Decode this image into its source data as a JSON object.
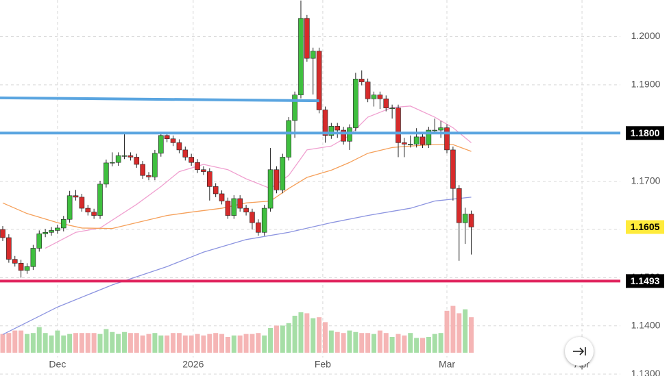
{
  "chart_data": {
    "type": "candlestick",
    "open": [
      1.16,
      1.1583,
      1.1538,
      1.153,
      1.1515,
      1.1523,
      1.1561,
      1.1591,
      1.1594,
      1.1598,
      1.1603,
      1.1621,
      1.167,
      1.1667,
      1.1644,
      1.1636,
      1.1629,
      1.1694,
      1.1738,
      1.1739,
      1.1753,
      1.1753,
      1.175,
      1.1735,
      1.1712,
      1.1709,
      1.1758,
      1.1795,
      1.1788,
      1.178,
      1.1765,
      1.175,
      1.1739,
      1.1724,
      1.172,
      1.1689,
      1.1674,
      1.1659,
      1.1629,
      1.1664,
      1.1644,
      1.1636,
      1.1614,
      1.1594,
      1.1644,
      1.1724,
      1.1682,
      1.175,
      1.1826,
      1.1879,
      1.2038,
      1.1955,
      1.197,
      1.1848,
      1.1795,
      1.1814,
      1.1806,
      1.1783,
      1.1811,
      1.1912,
      1.1906,
      1.1871,
      1.1879,
      1.1871,
      1.1852,
      1.1852,
      1.178,
      1.1777,
      1.1777,
      1.1792,
      1.1776,
      1.1806,
      1.1806,
      1.1811,
      1.1765,
      1.1685,
      1.1614,
      1.1632
    ],
    "high": [
      1.1607,
      1.159,
      1.1545,
      1.1537,
      1.153,
      1.1568,
      1.1598,
      1.1601,
      1.1605,
      1.161,
      1.1628,
      1.168,
      1.1682,
      1.1674,
      1.1651,
      1.1643,
      1.1701,
      1.1745,
      1.176,
      1.176,
      1.18,
      1.176,
      1.1757,
      1.1742,
      1.1719,
      1.1765,
      1.1802,
      1.1802,
      1.1795,
      1.1787,
      1.1772,
      1.1757,
      1.1746,
      1.1731,
      1.1727,
      1.1696,
      1.1681,
      1.1666,
      1.1671,
      1.1671,
      1.1651,
      1.1643,
      1.1621,
      1.1651,
      1.1769,
      1.1731,
      1.1757,
      1.1833,
      1.1886,
      1.2075,
      1.2045,
      1.1977,
      1.1977,
      1.1855,
      1.1821,
      1.1821,
      1.1813,
      1.1818,
      1.1925,
      1.193,
      1.1913,
      1.1886,
      1.1886,
      1.1878,
      1.1859,
      1.1859,
      1.179,
      1.1795,
      1.181,
      1.1799,
      1.1813,
      1.183,
      1.1825,
      1.1818,
      1.1772,
      1.1692,
      1.1645,
      1.1639
    ],
    "low": [
      1.1576,
      1.1531,
      1.1523,
      1.15,
      1.1508,
      1.1516,
      1.1554,
      1.1584,
      1.1587,
      1.1591,
      1.1596,
      1.1614,
      1.166,
      1.1637,
      1.1629,
      1.1622,
      1.1622,
      1.1687,
      1.1731,
      1.1732,
      1.1746,
      1.1743,
      1.1728,
      1.1705,
      1.1702,
      1.1702,
      1.1751,
      1.1781,
      1.1773,
      1.1758,
      1.1743,
      1.1732,
      1.1717,
      1.1713,
      1.166,
      1.1667,
      1.1652,
      1.1622,
      1.1622,
      1.1637,
      1.1629,
      1.16,
      1.1587,
      1.1587,
      1.1637,
      1.1675,
      1.1675,
      1.1743,
      1.179,
      1.1872,
      1.1948,
      1.188,
      1.1841,
      1.178,
      1.1788,
      1.179,
      1.1776,
      1.1765,
      1.1804,
      1.1899,
      1.1864,
      1.1855,
      1.185,
      1.1845,
      1.183,
      1.175,
      1.175,
      1.177,
      1.177,
      1.1769,
      1.1769,
      1.1799,
      1.179,
      1.1758,
      1.166,
      1.1535,
      1.157,
      1.1548
    ],
    "close": [
      1.1583,
      1.1538,
      1.153,
      1.1515,
      1.1523,
      1.1561,
      1.1591,
      1.1594,
      1.1598,
      1.1603,
      1.1621,
      1.167,
      1.1667,
      1.1644,
      1.1636,
      1.1629,
      1.1694,
      1.1738,
      1.1739,
      1.1753,
      1.1753,
      1.175,
      1.1735,
      1.1712,
      1.1709,
      1.1758,
      1.1795,
      1.1788,
      1.178,
      1.1765,
      1.175,
      1.1739,
      1.1724,
      1.172,
      1.1689,
      1.1674,
      1.1659,
      1.1629,
      1.1664,
      1.1644,
      1.1636,
      1.1614,
      1.1594,
      1.1644,
      1.1724,
      1.1682,
      1.175,
      1.1826,
      1.1879,
      1.2038,
      1.1955,
      1.197,
      1.1848,
      1.1795,
      1.1814,
      1.1806,
      1.1783,
      1.1811,
      1.1912,
      1.1906,
      1.1871,
      1.1879,
      1.1871,
      1.1852,
      1.1852,
      1.178,
      1.1777,
      1.1777,
      1.1792,
      1.1776,
      1.1806,
      1.1806,
      1.1811,
      1.1765,
      1.1685,
      1.1614,
      1.1632,
      1.1605
    ],
    "up_color": "#3fbf3f",
    "down_color": "#d62b2b",
    "volume": {
      "values": [
        38,
        40,
        45,
        45,
        38,
        40,
        52,
        40,
        35,
        45,
        35,
        38,
        40,
        40,
        40,
        40,
        38,
        48,
        42,
        38,
        42,
        40,
        40,
        35,
        38,
        40,
        35,
        35,
        40,
        40,
        35,
        35,
        38,
        35,
        38,
        40,
        38,
        32,
        35,
        35,
        38,
        38,
        40,
        35,
        50,
        55,
        55,
        60,
        75,
        82,
        80,
        70,
        72,
        62,
        45,
        42,
        40,
        45,
        42,
        40,
        40,
        38,
        45,
        40,
        32,
        38,
        35,
        40,
        30,
        30,
        32,
        38,
        40,
        85,
        95,
        80,
        88,
        72
      ],
      "vlim": [
        0,
        100
      ],
      "up_color": "#a6dea6",
      "down_color": "#f5b5b5"
    },
    "xlim": [
      -0.45,
      101.5
    ],
    "xticks": [
      {
        "value": 9.0,
        "label": "Dec"
      },
      {
        "value": 31.3,
        "label": "2026"
      },
      {
        "value": 52.6,
        "label": "Feb"
      },
      {
        "value": 73.0,
        "label": "Mar"
      },
      {
        "value": 95.2,
        "label": "Apr"
      }
    ],
    "ylim": [
      1.1296,
      1.2076
    ],
    "yticks": [
      {
        "value": 1.2,
        "label": "1.2000"
      },
      {
        "value": 1.19,
        "label": "1.1900"
      },
      {
        "value": 1.18,
        "label": "1.1800"
      },
      {
        "value": 1.17,
        "label": "1.1700"
      },
      {
        "value": 1.16,
        "label": "1.1600"
      },
      {
        "value": 1.15,
        "label": "1.1500"
      },
      {
        "value": 1.14,
        "label": "1.1400"
      },
      {
        "value": 1.13,
        "label": "1.1300"
      }
    ],
    "grid": true,
    "moving_averages": [
      {
        "color": "#f0a0d0",
        "x": [
          7,
          12,
          16,
          22,
          26,
          29,
          33,
          37,
          40,
          44,
          47,
          50,
          54,
          57,
          60,
          64,
          67,
          71,
          74,
          77
        ],
        "values": [
          1.1561,
          1.1594,
          1.1603,
          1.1652,
          1.1689,
          1.172,
          1.1735,
          1.1724,
          1.1705,
          1.1685,
          1.1712,
          1.1765,
          1.1773,
          1.1795,
          1.1833,
          1.1853,
          1.1856,
          1.1833,
          1.1811,
          1.178
        ]
      },
      {
        "color": "#f5a05a",
        "x": [
          0,
          4,
          9,
          13,
          18,
          22,
          27,
          31,
          36,
          40,
          44,
          47,
          50,
          54,
          57,
          60,
          64,
          67,
          71,
          74,
          77
        ],
        "values": [
          1.1655,
          1.1633,
          1.1614,
          1.1603,
          1.1602,
          1.1614,
          1.1629,
          1.1636,
          1.1644,
          1.1655,
          1.1659,
          1.1685,
          1.1708,
          1.1723,
          1.1739,
          1.1758,
          1.177,
          1.1773,
          1.1776,
          1.1776,
          1.1762
        ]
      },
      {
        "color": "#8c94e0",
        "x": [
          0,
          9,
          18,
          27,
          33,
          40,
          47,
          54,
          60,
          67,
          71,
          77
        ],
        "values": [
          1.1382,
          1.1439,
          1.1485,
          1.1523,
          1.1553,
          1.1579,
          1.1594,
          1.1614,
          1.1629,
          1.1644,
          1.1659,
          1.1667
        ]
      }
    ],
    "trendlines": [
      {
        "color": "#5aa5e0",
        "x": [
          -0.45,
          52.0
        ],
        "values": [
          1.1873,
          1.1867
        ]
      }
    ],
    "levels": [
      {
        "value": 1.18,
        "label": "1.1800",
        "color": "#5aa5e0"
      },
      {
        "value": 1.1493,
        "label": "1.1493",
        "color": "#e0245e"
      }
    ],
    "last_price": {
      "value": 1.1605,
      "label": "1.1605",
      "color": "#ffeb3b"
    }
  }
}
